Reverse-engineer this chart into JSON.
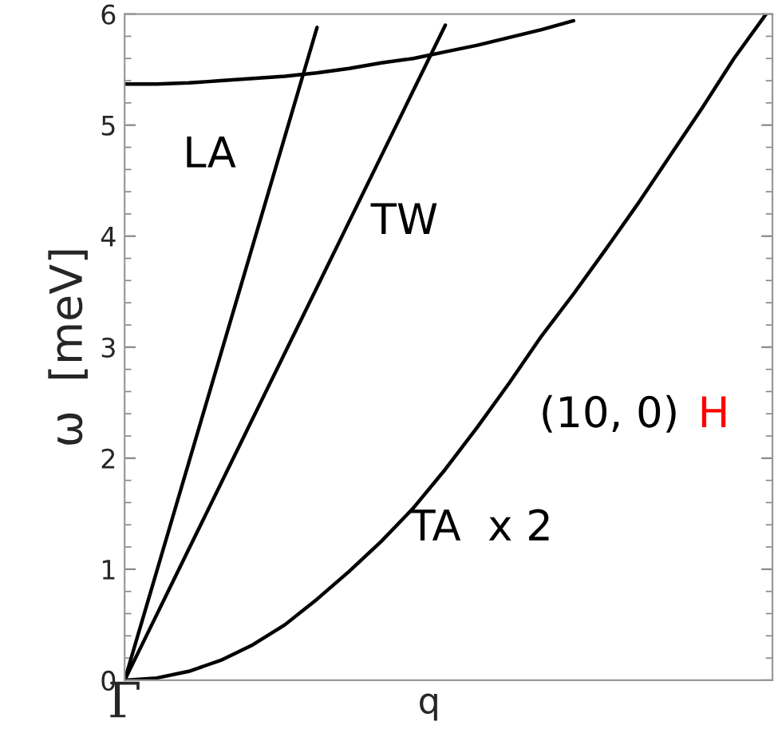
{
  "chart_data": {
    "type": "line",
    "xlabel": "q",
    "ylabel": "ω  [meV]",
    "categories": [
      "Γ",
      null,
      null,
      null,
      null,
      null,
      null,
      null,
      null,
      null,
      null,
      null,
      null,
      null,
      null,
      null,
      null,
      null,
      null,
      null,
      null
    ],
    "series": [
      {
        "name": "LA",
        "color": "#000000",
        "values": [
          0,
          0.98,
          1.96,
          2.94,
          3.92,
          4.9,
          5.88,
          null,
          null,
          null,
          null,
          null,
          null,
          null,
          null,
          null,
          null,
          null,
          null,
          null,
          null
        ]
      },
      {
        "name": "TW",
        "color": "#000000",
        "values": [
          0,
          0.59,
          1.18,
          1.77,
          2.36,
          2.95,
          3.54,
          4.13,
          4.72,
          5.31,
          5.9,
          null,
          null,
          null,
          null,
          null,
          null,
          null,
          null,
          null,
          null
        ]
      },
      {
        "name": "TA  x 2",
        "color": "#000000",
        "values": [
          0,
          0.02,
          0.08,
          0.18,
          0.32,
          0.5,
          0.73,
          0.98,
          1.25,
          1.55,
          1.9,
          2.28,
          2.68,
          3.1,
          3.48,
          3.88,
          4.29,
          4.72,
          5.15,
          5.6,
          6.0
        ]
      },
      {
        "color": "#000000",
        "values": [
          5.37,
          5.37,
          5.38,
          5.4,
          5.42,
          5.44,
          5.47,
          5.51,
          5.56,
          5.6,
          5.66,
          5.72,
          5.79,
          5.86,
          5.94,
          null,
          null,
          null,
          null,
          null,
          null
        ]
      }
    ],
    "annotations": [
      "(10, 0)",
      "H"
    ],
    "ylim": [
      0,
      6
    ],
    "yticks": [
      0,
      1,
      2,
      3,
      4,
      5,
      6
    ],
    "grid": false,
    "legend": false,
    "marker": "none",
    "line_style": "solid"
  }
}
